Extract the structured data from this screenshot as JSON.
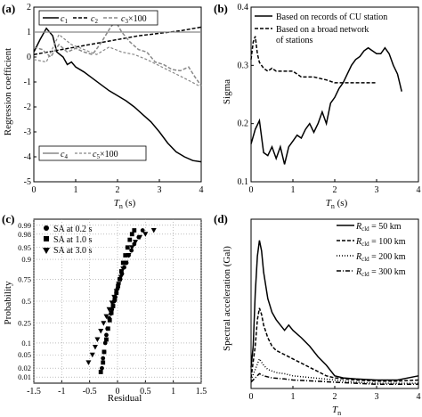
{
  "chart_data": [
    {
      "panel": "(a)",
      "type": "line",
      "ylabel": "Regression coefficient",
      "xlabel_main": "T",
      "xlabel_sub": "n",
      "xlabel_unit": " (s)",
      "xlim": [
        0,
        4
      ],
      "ylim": [
        -5,
        2
      ],
      "xticks": [
        0,
        1,
        2,
        3,
        4
      ],
      "yticks": [
        -5,
        -4,
        -3,
        -2,
        -1,
        0,
        1,
        2
      ],
      "legend_top": [
        "c1",
        "c2",
        "c3×100"
      ],
      "legend_bottom": [
        "c4",
        "c5×100"
      ],
      "legend_top_parts": [
        {
          "main": "c",
          "sub": "1",
          "suffix": ""
        },
        {
          "main": "c",
          "sub": "2",
          "suffix": ""
        },
        {
          "main": "c",
          "sub": "3",
          "suffix": "×100"
        }
      ],
      "legend_bottom_parts": [
        {
          "main": "c",
          "sub": "4",
          "suffix": ""
        },
        {
          "main": "c",
          "sub": "5",
          "suffix": "×100"
        }
      ],
      "series": [
        {
          "name": "c1",
          "style": "solid",
          "x": [
            0,
            0.15,
            0.3,
            0.45,
            0.55,
            0.7,
            0.8,
            0.9,
            1.0,
            1.2,
            1.4,
            1.6,
            1.8,
            2.0,
            2.2,
            2.4,
            2.6,
            2.8,
            3.0,
            3.2,
            3.4,
            3.6,
            3.8,
            4.0
          ],
          "y": [
            0.2,
            0.7,
            1.15,
            0.85,
            0.2,
            0.0,
            -0.3,
            -0.2,
            -0.4,
            -0.6,
            -0.85,
            -1.1,
            -1.35,
            -1.55,
            -1.75,
            -2.0,
            -2.3,
            -2.6,
            -3.0,
            -3.45,
            -3.8,
            -4.0,
            -4.15,
            -4.2
          ]
        },
        {
          "name": "c2",
          "style": "dash",
          "x": [
            0,
            0.5,
            1.0,
            1.5,
            2.0,
            2.5,
            3.0,
            3.5,
            4.0
          ],
          "y": [
            0.1,
            0.25,
            0.4,
            0.55,
            0.7,
            0.85,
            0.95,
            1.05,
            1.2
          ]
        },
        {
          "name": "c3×100",
          "style": "gray-dash",
          "x": [
            0,
            0.2,
            0.4,
            0.6,
            0.8,
            1.0,
            1.2,
            1.4,
            1.6,
            1.8,
            1.95,
            2.1,
            2.3,
            2.5,
            2.7,
            2.9,
            3.1,
            3.3,
            3.5,
            3.7,
            3.85,
            4.0
          ],
          "y": [
            0.4,
            0.3,
            0.0,
            0.5,
            0.2,
            0.35,
            0.2,
            0.1,
            0.55,
            1.1,
            1.45,
            1.0,
            0.6,
            0.3,
            0.2,
            -0.2,
            -0.3,
            -0.5,
            -0.55,
            -0.4,
            -0.8,
            -1.15
          ]
        },
        {
          "name": "c4",
          "style": "gray-solid",
          "x": [
            0,
            4
          ],
          "y": [
            1.0,
            1.0
          ]
        },
        {
          "name": "c5×100",
          "style": "dash-light",
          "x": [
            0,
            0.3,
            0.6,
            0.9,
            1.2,
            1.5,
            1.8,
            2.1,
            2.4,
            2.7,
            3.0,
            3.3,
            3.6,
            4.0
          ],
          "y": [
            -0.1,
            -0.2,
            0.9,
            0.5,
            0.3,
            0.1,
            0.4,
            0.2,
            0.1,
            -0.1,
            -0.35,
            -0.6,
            -0.85,
            -1.2
          ]
        }
      ]
    },
    {
      "panel": "(b)",
      "type": "line",
      "ylabel": "Sigma",
      "xlabel_main": "T",
      "xlabel_sub": "n",
      "xlabel_unit": " (s)",
      "xlim": [
        0,
        4
      ],
      "ylim": [
        0.1,
        0.4
      ],
      "xticks": [
        0,
        1,
        2,
        3,
        4
      ],
      "yticks": [
        0.1,
        0.2,
        0.3,
        0.4
      ],
      "legend": [
        "Based on records of CU station",
        "Based on a broad network",
        "of stations"
      ],
      "series": [
        {
          "name": "Based on records of CU station",
          "style": "solid",
          "x": [
            0,
            0.1,
            0.2,
            0.3,
            0.4,
            0.5,
            0.6,
            0.7,
            0.8,
            0.9,
            1.0,
            1.1,
            1.2,
            1.3,
            1.4,
            1.5,
            1.6,
            1.7,
            1.8,
            1.9,
            2.0,
            2.1,
            2.2,
            2.3,
            2.4,
            2.5,
            2.6,
            2.7,
            2.8,
            2.9,
            3.0,
            3.1,
            3.2,
            3.3,
            3.4,
            3.5,
            3.6
          ],
          "y": [
            0.165,
            0.19,
            0.205,
            0.15,
            0.145,
            0.16,
            0.14,
            0.16,
            0.13,
            0.16,
            0.17,
            0.18,
            0.175,
            0.19,
            0.2,
            0.185,
            0.2,
            0.22,
            0.2,
            0.235,
            0.245,
            0.26,
            0.27,
            0.285,
            0.3,
            0.31,
            0.315,
            0.325,
            0.33,
            0.325,
            0.32,
            0.32,
            0.33,
            0.32,
            0.3,
            0.285,
            0.255
          ]
        },
        {
          "name": "Based on a broad network of stations",
          "style": "dash",
          "x": [
            0,
            0.05,
            0.1,
            0.15,
            0.2,
            0.3,
            0.4,
            0.5,
            0.6,
            0.8,
            1.0,
            1.2,
            1.5,
            1.8,
            2.0,
            2.5,
            3.0
          ],
          "y": [
            0.31,
            0.34,
            0.35,
            0.32,
            0.305,
            0.295,
            0.29,
            0.295,
            0.29,
            0.29,
            0.29,
            0.28,
            0.28,
            0.275,
            0.27,
            0.27,
            0.27
          ]
        }
      ]
    },
    {
      "panel": "(c)",
      "type": "scatter",
      "ylabel": "Probability",
      "xlabel": "Residual",
      "xlim": [
        -1.5,
        1.5
      ],
      "xticks": [
        -1.5,
        -1,
        -0.5,
        0,
        0.5,
        1,
        1.5
      ],
      "yticks": [
        0.01,
        0.02,
        0.05,
        0.1,
        0.25,
        0.5,
        0.75,
        0.9,
        0.95,
        0.98,
        0.99
      ],
      "legend": [
        "SA at 0.2 s",
        "SA at 1.0 s",
        "SA at 3.0 s"
      ],
      "series": [
        {
          "name": "SA at 0.2 s",
          "marker": "circle",
          "x": [
            -0.28,
            -0.26,
            -0.24,
            -0.22,
            -0.2,
            -0.18,
            -0.15,
            -0.12,
            -0.1,
            -0.08,
            -0.06,
            -0.04,
            -0.02,
            0.0,
            0.02,
            0.05,
            0.08,
            0.12,
            0.16,
            0.2,
            0.25,
            0.3,
            0.38,
            0.45
          ],
          "p": [
            0.02,
            0.04,
            0.06,
            0.1,
            0.15,
            0.2,
            0.3,
            0.35,
            0.4,
            0.45,
            0.5,
            0.55,
            0.6,
            0.65,
            0.7,
            0.75,
            0.8,
            0.85,
            0.88,
            0.92,
            0.94,
            0.96,
            0.975,
            0.985
          ]
        },
        {
          "name": "SA at 1.0 s",
          "marker": "square",
          "x": [
            -0.3,
            -0.26,
            -0.24,
            -0.2,
            -0.17,
            -0.14,
            -0.11,
            -0.08,
            -0.05,
            -0.02,
            0.01,
            0.04,
            0.07,
            0.1,
            0.14,
            0.18,
            0.22,
            0.26,
            0.3
          ],
          "p": [
            0.015,
            0.03,
            0.06,
            0.12,
            0.2,
            0.28,
            0.36,
            0.44,
            0.52,
            0.6,
            0.68,
            0.75,
            0.82,
            0.88,
            0.92,
            0.95,
            0.97,
            0.98,
            0.985
          ]
        },
        {
          "name": "SA at 3.0 s",
          "marker": "triangle",
          "x": [
            -0.52,
            -0.45,
            -0.4,
            -0.36,
            -0.3,
            -0.25,
            -0.2,
            -0.15,
            -0.1,
            -0.06,
            -0.02,
            0.02,
            0.06,
            0.1,
            0.15,
            0.2,
            0.26,
            0.32,
            0.4,
            0.5,
            0.65
          ],
          "p": [
            0.03,
            0.05,
            0.08,
            0.12,
            0.18,
            0.25,
            0.32,
            0.4,
            0.48,
            0.55,
            0.62,
            0.7,
            0.77,
            0.84,
            0.88,
            0.92,
            0.95,
            0.965,
            0.975,
            0.98,
            0.985
          ]
        }
      ]
    },
    {
      "panel": "(d)",
      "type": "line",
      "ylabel": "Spectral acceleration (Gal)",
      "xlabel_main": "T",
      "xlabel_sub": "n",
      "xlim": [
        0,
        4
      ],
      "ylim": [
        0,
        160
      ],
      "xticks": [
        0,
        1,
        2,
        3,
        4
      ],
      "yticks": [],
      "legend": [
        "Rcld = 50 km",
        "Rcld = 100 km",
        "Rcld = 200 km",
        "Rcld = 300 km"
      ],
      "legend_parts": [
        {
          "main": "R",
          "sub": "cld",
          "suffix": " = 50 km"
        },
        {
          "main": "R",
          "sub": "cld",
          "suffix": " = 100 km"
        },
        {
          "main": "R",
          "sub": "cld",
          "suffix": " = 200 km"
        },
        {
          "main": "R",
          "sub": "cld",
          "suffix": " = 300 km"
        }
      ],
      "series": [
        {
          "name": "Rcld = 50 km",
          "style": "solid",
          "x": [
            0,
            0.05,
            0.1,
            0.15,
            0.2,
            0.25,
            0.3,
            0.4,
            0.5,
            0.6,
            0.7,
            0.8,
            0.9,
            1.0,
            1.2,
            1.4,
            1.6,
            1.8,
            2.0,
            2.2,
            2.5,
            3.0,
            3.5,
            4.0
          ],
          "y": [
            20,
            40,
            90,
            125,
            140,
            130,
            110,
            85,
            72,
            65,
            60,
            55,
            60,
            55,
            48,
            40,
            30,
            22,
            12,
            10,
            9,
            8,
            8,
            12
          ]
        },
        {
          "name": "Rcld = 100 km",
          "style": "dash",
          "x": [
            0,
            0.1,
            0.15,
            0.2,
            0.25,
            0.3,
            0.4,
            0.5,
            0.6,
            0.8,
            1.0,
            1.2,
            1.4,
            1.6,
            1.8,
            2.0,
            2.5,
            3.0,
            3.5,
            4.0
          ],
          "y": [
            10,
            40,
            65,
            76,
            70,
            60,
            48,
            40,
            36,
            32,
            28,
            24,
            20,
            16,
            12,
            10,
            8,
            7,
            7,
            8
          ]
        },
        {
          "name": "Rcld = 200 km",
          "style": "dot",
          "x": [
            0,
            0.1,
            0.2,
            0.3,
            0.4,
            0.6,
            0.8,
            1.0,
            1.5,
            2.0,
            2.5,
            3.0,
            3.5,
            4.0
          ],
          "y": [
            8,
            18,
            28,
            22,
            18,
            15,
            14,
            12,
            10,
            8,
            6,
            5,
            5,
            5
          ]
        },
        {
          "name": "Rcld = 300 km",
          "style": "dashdot",
          "x": [
            0,
            0.1,
            0.2,
            0.3,
            0.5,
            0.8,
            1.0,
            1.5,
            2.0,
            2.5,
            3.0,
            3.5,
            4.0
          ],
          "y": [
            6,
            10,
            14,
            12,
            10,
            9,
            8,
            7,
            6,
            5,
            4,
            4,
            4
          ]
        }
      ]
    }
  ]
}
